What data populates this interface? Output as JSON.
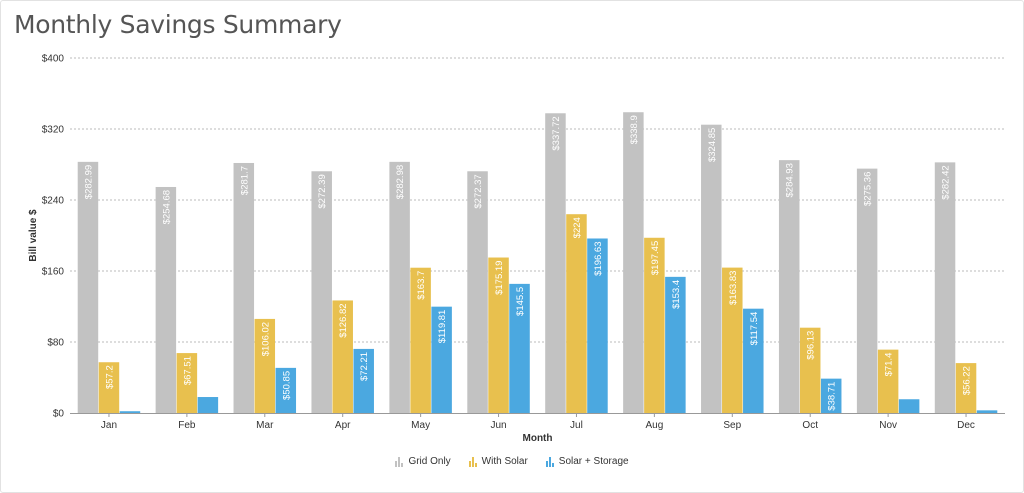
{
  "title": "Monthly Savings Summary",
  "chart_data": {
    "type": "bar",
    "categories": [
      "Jan",
      "Feb",
      "Mar",
      "Apr",
      "May",
      "Jun",
      "Jul",
      "Aug",
      "Sep",
      "Oct",
      "Nov",
      "Dec"
    ],
    "series": [
      {
        "name": "Grid Only",
        "color": "#c2c2c2",
        "values": [
          282.99,
          254.68,
          281.7,
          272.39,
          282.98,
          272.37,
          337.72,
          338.9,
          324.85,
          284.93,
          275.36,
          282.42
        ],
        "labels": [
          "$282.99",
          "$254.68",
          "$281.7",
          "$272.39",
          "$282.98",
          "$272.37",
          "$337.72",
          "$338.9",
          "$324.85",
          "$284.93",
          "$275.36",
          "$282.42"
        ]
      },
      {
        "name": "With Solar",
        "color": "#e8c04e",
        "values": [
          57.2,
          67.51,
          106.02,
          126.82,
          163.7,
          175.19,
          224,
          197.45,
          163.83,
          96.13,
          71.4,
          56.22
        ],
        "labels": [
          "$57.2",
          "$67.51",
          "$106.02",
          "$126.82",
          "$163.7",
          "$175.19",
          "$224",
          "$197.45",
          "$163.83",
          "$96.13",
          "$71.4",
          "$56.22"
        ]
      },
      {
        "name": "Solar + Storage",
        "color": "#4ba8e0",
        "values": [
          2,
          18,
          50.85,
          72.21,
          119.81,
          145.5,
          196.63,
          153.4,
          117.54,
          38.71,
          15.5,
          3
        ],
        "labels": [
          "",
          "",
          "$50.85",
          "$72.21",
          "$119.81",
          "$145.5",
          "$196.63",
          "$153.4",
          "$117.54",
          "$38.71",
          "",
          ""
        ]
      }
    ],
    "xlabel": "Month",
    "ylabel": "Bill value $",
    "ylim": [
      0,
      400
    ],
    "yticks": [
      0,
      80,
      160,
      240,
      320,
      400
    ],
    "ytick_labels": [
      "$0",
      "$80",
      "$160",
      "$240",
      "$320",
      "$400"
    ],
    "grid": true,
    "legend_position": "bottom"
  }
}
